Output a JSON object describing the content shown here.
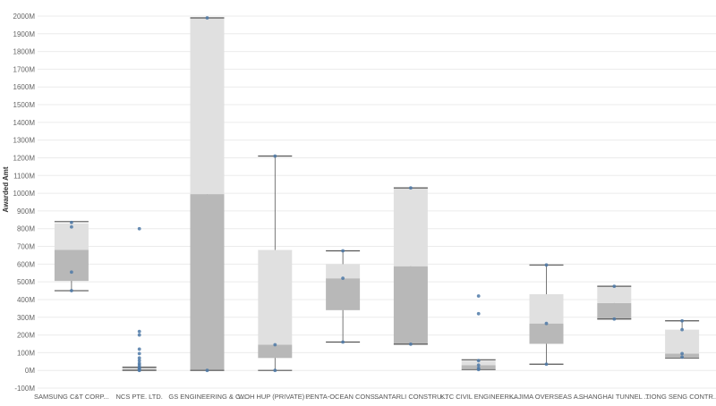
{
  "chart_data": {
    "type": "boxplot",
    "title": "",
    "xlabel": "",
    "ylabel": "Awarded Amt",
    "ylim": [
      -100,
      2000
    ],
    "yticks": [
      -100,
      0,
      100,
      200,
      300,
      400,
      500,
      600,
      700,
      800,
      900,
      1000,
      1100,
      1200,
      1300,
      1400,
      1500,
      1600,
      1700,
      1800,
      1900,
      2000
    ],
    "ytick_labels": [
      "-100M",
      "0M",
      "100M",
      "200M",
      "300M",
      "400M",
      "500M",
      "600M",
      "700M",
      "800M",
      "900M",
      "1000M",
      "1100M",
      "1200M",
      "1300M",
      "1400M",
      "1500M",
      "1600M",
      "1700M",
      "1800M",
      "1900M",
      "2000M"
    ],
    "grid": true,
    "categories": [
      "SAMSUNG C&T CORP...",
      "NCS PTE. LTD.",
      "GS ENGINEERING & C...",
      "WOH HUP (PRIVATE) ...",
      "PENTA-OCEAN CONS...",
      "SANTARLI CONSTRU...",
      "KTC CIVIL ENGINEERI...",
      "KAJIMA OVERSEAS A...",
      "SHANGHAI TUNNEL ...",
      "TIONG SENG CONTR..."
    ],
    "boxes": [
      {
        "min": 450,
        "q1": 505,
        "median": 680,
        "q3": 830,
        "max": 840,
        "points": [
          450,
          555,
          810,
          835
        ]
      },
      {
        "min": 0,
        "q1": 2,
        "median": 8,
        "q3": 15,
        "max": 18,
        "points": [
          0,
          3,
          8,
          12,
          20,
          30,
          40,
          55,
          70,
          95,
          120,
          200,
          220,
          800
        ]
      },
      {
        "min": 0,
        "q1": 0,
        "median": 995,
        "q3": 1990,
        "max": 1990,
        "points": [
          0,
          1990
        ]
      },
      {
        "min": 0,
        "q1": 70,
        "median": 145,
        "q3": 680,
        "max": 1210,
        "points": [
          0,
          145,
          1210
        ]
      },
      {
        "min": 160,
        "q1": 340,
        "median": 520,
        "q3": 600,
        "max": 675,
        "points": [
          160,
          520,
          675
        ]
      },
      {
        "min": 148,
        "q1": 148,
        "median": 588,
        "q3": 1030,
        "max": 1030,
        "points": [
          148,
          1030
        ]
      },
      {
        "min": 5,
        "q1": 10,
        "median": 30,
        "q3": 55,
        "max": 60,
        "points": [
          5,
          12,
          30,
          55,
          320,
          420
        ]
      },
      {
        "min": 35,
        "q1": 150,
        "median": 265,
        "q3": 430,
        "max": 595,
        "points": [
          35,
          265,
          595
        ]
      },
      {
        "min": 290,
        "q1": 290,
        "median": 380,
        "q3": 470,
        "max": 475,
        "points": [
          290,
          475
        ]
      },
      {
        "min": 70,
        "q1": 75,
        "median": 95,
        "q3": 230,
        "max": 280,
        "points": [
          75,
          95,
          230,
          280
        ]
      }
    ],
    "colors": {
      "box_lower": "#b8b8b8",
      "box_upper": "#e0e0e0",
      "whisker": "#555555",
      "point": "#4e79a7",
      "grid": "#ebebeb"
    }
  }
}
